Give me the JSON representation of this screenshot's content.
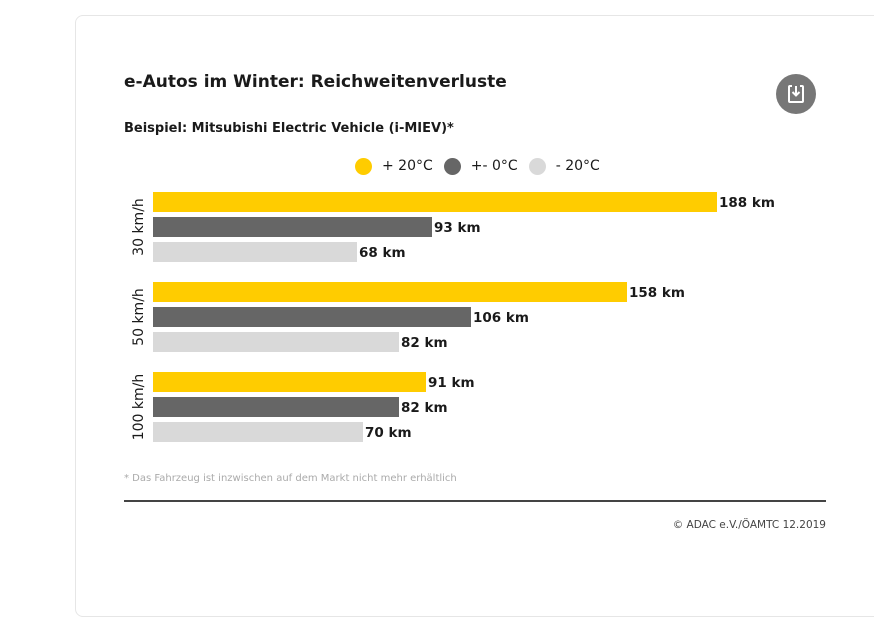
{
  "title": "e-Autos im Winter: Reichweitenverluste",
  "subtitle": "Beispiel: Mitsubishi Electric Vehicle (i-MIEV)*",
  "download_icon": "download-icon",
  "footnote": "* Das Fahrzeug ist inzwischen auf dem Markt nicht mehr erhältlich",
  "copyright": "© ADAC e.V./ÖAMTC 12.2019",
  "chart_data": {
    "type": "bar",
    "orientation": "horizontal",
    "categories": [
      "30 km/h",
      "50 km/h",
      "100 km/h"
    ],
    "series": [
      {
        "name": "+ 20°C",
        "color": "#ffcc00",
        "values": [
          188,
          158,
          91
        ]
      },
      {
        "name": "+- 0°C",
        "color": "#666666",
        "values": [
          93,
          106,
          82
        ]
      },
      {
        "name": "- 20°C",
        "color": "#d9d9d9",
        "values": [
          68,
          82,
          70
        ]
      }
    ],
    "value_suffix": " km",
    "legend_position": "top",
    "grid": false
  }
}
